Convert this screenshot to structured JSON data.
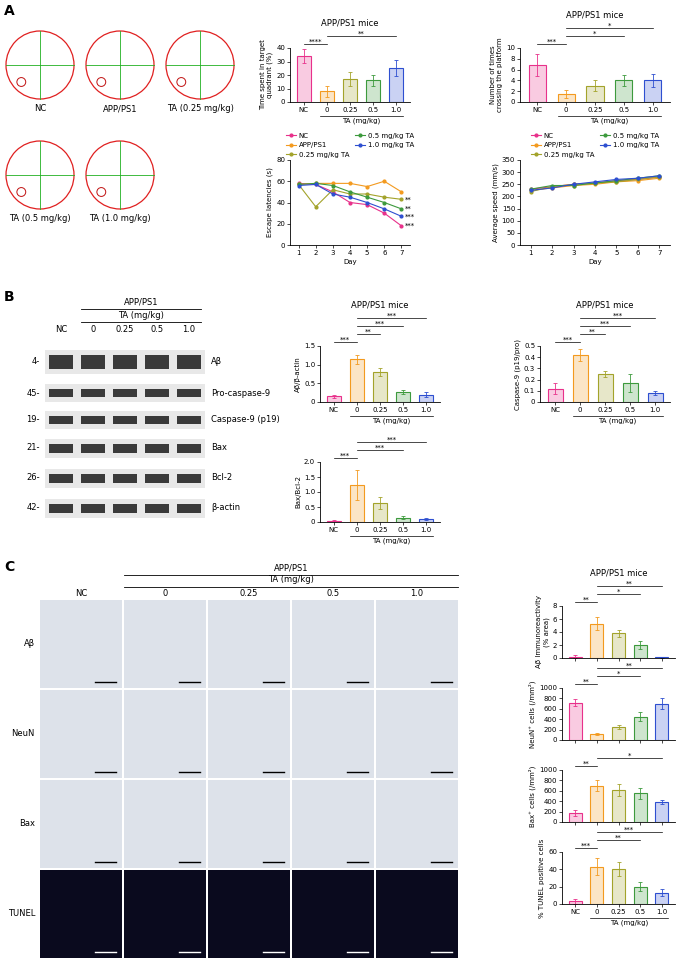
{
  "panel_labels": [
    "A",
    "B",
    "C"
  ],
  "trajectories": {
    "labels": [
      "NC",
      "APP/PS1",
      "TA (0.25 mg/kg)",
      "TA (0.5 mg/kg)",
      "TA (1.0 mg/kg)"
    ]
  },
  "western_blot": {
    "group": "APP/PS1",
    "treatment": "TA (mg/kg)",
    "lanes": [
      "NC",
      "0",
      "0.25",
      "0.5",
      "1.0"
    ],
    "bands": [
      {
        "label": "Aβ",
        "mw": "4-"
      },
      {
        "label": "Pro-caspase-9",
        "mw": "45-"
      },
      {
        "label": "Caspase-9 (p19)",
        "mw": "19-"
      },
      {
        "label": "Bax",
        "mw": "21-"
      },
      {
        "label": "Bcl-2",
        "mw": "26-"
      },
      {
        "label": "β-actin",
        "mw": "42-"
      }
    ]
  },
  "histology": {
    "group": "APP/PS1",
    "treatment": "TA (mg/kg)",
    "columns": [
      "NC",
      "0",
      "0.25",
      "0.5",
      "1.0"
    ],
    "rows": [
      "Aβ",
      "NeuN",
      "Bax",
      "TUNEL"
    ]
  },
  "chart_data": [
    {
      "type": "bar",
      "title": "APP/PS1 mice",
      "ylabel": "Time spent in target\nquadrant (%)",
      "xlabel": "TA (mg/kg)",
      "categories": [
        "NC",
        "0",
        "0.25",
        "0.5",
        "1.0"
      ],
      "values": [
        34,
        8,
        17,
        16,
        25
      ],
      "errors": [
        5,
        4,
        5,
        4,
        6
      ],
      "colors": [
        "#e8318b",
        "#f39a1f",
        "#a3a32b",
        "#3d9a3d",
        "#2e4fd0"
      ],
      "ylim": [
        0,
        40
      ],
      "yticks": [
        0,
        10,
        20,
        30,
        40
      ],
      "significance": [
        {
          "pair": [
            0,
            1
          ],
          "label": "****"
        },
        {
          "pair": [
            1,
            4
          ],
          "label": "**"
        }
      ]
    },
    {
      "type": "bar",
      "title": "APP/PS1 mice",
      "ylabel": "Number of times\ncrossing the platform",
      "xlabel": "TA (mg/kg)",
      "categories": [
        "NC",
        "0",
        "0.25",
        "0.5",
        "1.0"
      ],
      "values": [
        6.8,
        1.5,
        3,
        4,
        4
      ],
      "errors": [
        2,
        0.7,
        1,
        1,
        1.2
      ],
      "colors": [
        "#e8318b",
        "#f39a1f",
        "#a3a32b",
        "#3d9a3d",
        "#2e4fd0"
      ],
      "ylim": [
        0,
        10
      ],
      "yticks": [
        0,
        2,
        4,
        6,
        8,
        10
      ],
      "significance": [
        {
          "pair": [
            0,
            1
          ],
          "label": "***"
        },
        {
          "pair": [
            1,
            3
          ],
          "label": "*"
        },
        {
          "pair": [
            1,
            4
          ],
          "label": "*"
        }
      ]
    },
    {
      "type": "line",
      "ylabel": "Escape latencies (s)",
      "xlabel": "Day",
      "marker": "o",
      "legend": "upper center",
      "x": [
        1,
        2,
        3,
        4,
        5,
        6,
        7
      ],
      "xlim": [
        0.5,
        7.5
      ],
      "xticks": [
        1,
        2,
        3,
        4,
        5,
        6,
        7
      ],
      "ylim": [
        0,
        80
      ],
      "yticks": [
        0,
        20,
        40,
        60,
        80
      ],
      "series": [
        {
          "name": "NC",
          "color": "#e8318b",
          "values": [
            58,
            57,
            50,
            40,
            38,
            30,
            18
          ],
          "end_label": "***"
        },
        {
          "name": "APP/PS1",
          "color": "#f39a1f",
          "values": [
            57,
            58,
            58,
            58,
            55,
            60,
            50
          ]
        },
        {
          "name": "0.25 mg/kg TA",
          "color": "#a3a32b",
          "values": [
            57,
            36,
            52,
            48,
            48,
            45,
            43
          ],
          "end_label": "**"
        },
        {
          "name": "0.5 mg/kg TA",
          "color": "#3d9a3d",
          "values": [
            57,
            58,
            56,
            50,
            45,
            40,
            34
          ],
          "end_label": "**"
        },
        {
          "name": "1.0 mg/kg TA",
          "color": "#2e4fd0",
          "values": [
            56,
            57,
            48,
            45,
            40,
            34,
            27
          ],
          "end_label": "***"
        }
      ]
    },
    {
      "type": "line",
      "ylabel": "Average speed (mm/s)",
      "xlabel": "Day",
      "marker": "o",
      "legend": "upper center",
      "x": [
        1,
        2,
        3,
        4,
        5,
        6,
        7
      ],
      "xlim": [
        0.5,
        7.5
      ],
      "xticks": [
        1,
        2,
        3,
        4,
        5,
        6,
        7
      ],
      "ylim": [
        0,
        350
      ],
      "yticks": [
        0,
        50,
        100,
        150,
        200,
        250,
        300,
        350
      ],
      "series": [
        {
          "name": "NC",
          "color": "#e8318b",
          "values": [
            230,
            240,
            250,
            255,
            265,
            270,
            280
          ]
        },
        {
          "name": "APP/PS1",
          "color": "#f39a1f",
          "values": [
            225,
            235,
            245,
            250,
            260,
            265,
            275
          ]
        },
        {
          "name": "0.25 mg/kg TA",
          "color": "#a3a32b",
          "values": [
            220,
            240,
            250,
            255,
            260,
            270,
            280
          ]
        },
        {
          "name": "0.5 mg/kg TA",
          "color": "#3d9a3d",
          "values": [
            230,
            245,
            245,
            255,
            265,
            275,
            285
          ]
        },
        {
          "name": "1.0 mg/kg TA",
          "color": "#2e4fd0",
          "values": [
            225,
            235,
            250,
            260,
            270,
            275,
            285
          ]
        }
      ]
    },
    {
      "type": "bar",
      "title": "APP/PS1 mice",
      "ylabel": "Aβ/β-actin",
      "xlabel": "TA (mg/kg)",
      "categories": [
        "NC",
        "0",
        "0.25",
        "0.5",
        "1.0"
      ],
      "values": [
        0.15,
        1.15,
        0.8,
        0.27,
        0.2
      ],
      "errors": [
        0.03,
        0.12,
        0.1,
        0.05,
        0.07
      ],
      "colors": [
        "#e8318b",
        "#f39a1f",
        "#a3a32b",
        "#3d9a3d",
        "#2e4fd0"
      ],
      "ylim": [
        0,
        1.5
      ],
      "yticks": [
        0,
        0.5,
        {
          "value": 1.0,
          "label": "1.0"
        },
        1.5
      ],
      "significance": [
        {
          "pair": [
            0,
            1
          ],
          "label": "***"
        },
        {
          "pair": [
            1,
            2
          ],
          "label": "**"
        },
        {
          "pair": [
            1,
            3
          ],
          "label": "***"
        },
        {
          "pair": [
            1,
            4
          ],
          "label": "***"
        }
      ]
    },
    {
      "type": "bar",
      "title": "APP/PS1 mice",
      "ylabel": "Caspase-9 (p19/pro)",
      "xlabel": "TA (mg/kg)",
      "categories": [
        "NC",
        "0",
        "0.25",
        "0.5",
        "1.0"
      ],
      "values": [
        0.12,
        0.42,
        0.25,
        0.17,
        0.08
      ],
      "errors": [
        0.05,
        0.05,
        0.03,
        0.08,
        0.02
      ],
      "colors": [
        "#e8318b",
        "#f39a1f",
        "#a3a32b",
        "#3d9a3d",
        "#2e4fd0"
      ],
      "ylim": [
        0,
        0.5
      ],
      "yticks": [
        0,
        0.1,
        0.2,
        0.3,
        0.4,
        0.5
      ],
      "significance": [
        {
          "pair": [
            0,
            1
          ],
          "label": "***"
        },
        {
          "pair": [
            1,
            2
          ],
          "label": "**"
        },
        {
          "pair": [
            1,
            3
          ],
          "label": "***"
        },
        {
          "pair": [
            1,
            4
          ],
          "label": "***"
        }
      ]
    },
    {
      "type": "bar",
      "ylabel": "Bax/Bcl-2",
      "xlabel": "TA (mg/kg)",
      "categories": [
        "NC",
        "0",
        "0.25",
        "0.5",
        "1.0"
      ],
      "values": [
        0.05,
        1.25,
        0.65,
        0.15,
        0.1
      ],
      "errors": [
        0.02,
        0.5,
        0.2,
        0.05,
        0.03
      ],
      "colors": [
        "#e8318b",
        "#f39a1f",
        "#a3a32b",
        "#3d9a3d",
        "#2e4fd0"
      ],
      "ylim": [
        0,
        2.0
      ],
      "yticks": [
        0,
        0.5,
        {
          "value": 1.0,
          "label": "1.0"
        },
        1.5,
        {
          "value": 2.0,
          "label": "2.0"
        }
      ],
      "significance": [
        {
          "pair": [
            0,
            1
          ],
          "label": "***"
        },
        {
          "pair": [
            1,
            3
          ],
          "label": "***"
        },
        {
          "pair": [
            1,
            4
          ],
          "label": "***"
        }
      ]
    },
    {
      "type": "bar",
      "title": "APP/PS1 mice",
      "ylabel": "Aβ Immunoreactivity\n(% area)",
      "tick_labels": "y",
      "categories": [
        "NC",
        "0",
        "0.25",
        "0.5",
        "1.0"
      ],
      "values": [
        0.2,
        5.3,
        3.8,
        2.0,
        0.1
      ],
      "errors": [
        0.2,
        1,
        0.5,
        0.6,
        0.1
      ],
      "colors": [
        "#e8318b",
        "#f39a1f",
        "#a3a32b",
        "#3d9a3d",
        "#2e4fd0"
      ],
      "ylim": [
        0,
        8
      ],
      "yticks": [
        0,
        2,
        4,
        6,
        8
      ],
      "significance": [
        {
          "pair": [
            0,
            1
          ],
          "label": "**"
        },
        {
          "pair": [
            1,
            3
          ],
          "label": "*"
        },
        {
          "pair": [
            1,
            4
          ],
          "label": "**"
        }
      ]
    },
    {
      "type": "bar",
      "ylabel": "NeuN⁺ cells (/mm²)",
      "tick_labels": "y",
      "categories": [
        "NC",
        "0",
        "0.25",
        "0.5",
        "1.0"
      ],
      "values": [
        720,
        120,
        250,
        450,
        700
      ],
      "errors": [
        60,
        15,
        40,
        90,
        100
      ],
      "colors": [
        "#e8318b",
        "#f39a1f",
        "#a3a32b",
        "#3d9a3d",
        "#2e4fd0"
      ],
      "ylim": [
        0,
        1000
      ],
      "yticks": [
        0,
        200,
        400,
        600,
        800,
        1000
      ],
      "significance": [
        {
          "pair": [
            0,
            1
          ],
          "label": "**"
        },
        {
          "pair": [
            1,
            3
          ],
          "label": "*"
        },
        {
          "pair": [
            1,
            4
          ],
          "label": "**"
        }
      ]
    },
    {
      "type": "bar",
      "ylabel": "Bax⁺ cells (/mm²)",
      "tick_labels": "y",
      "categories": [
        "NC",
        "0",
        "0.25",
        "0.5",
        "1.0"
      ],
      "values": [
        180,
        700,
        620,
        550,
        390
      ],
      "errors": [
        60,
        100,
        120,
        100,
        40
      ],
      "colors": [
        "#e8318b",
        "#f39a1f",
        "#a3a32b",
        "#3d9a3d",
        "#2e4fd0"
      ],
      "ylim": [
        0,
        1000
      ],
      "yticks": [
        0,
        200,
        400,
        600,
        800,
        1000
      ],
      "significance": [
        {
          "pair": [
            0,
            1
          ],
          "label": "**"
        },
        {
          "pair": [
            1,
            4
          ],
          "label": "*"
        }
      ]
    },
    {
      "type": "bar",
      "ylabel": "% TUNEL positive cells",
      "xlabel": "TA (mg/kg)",
      "categories": [
        "NC",
        "0",
        "0.25",
        "0.5",
        "1.0"
      ],
      "values": [
        3,
        43,
        40,
        20,
        13
      ],
      "errors": [
        3,
        10,
        8,
        5,
        4
      ],
      "colors": [
        "#e8318b",
        "#f39a1f",
        "#a3a32b",
        "#3d9a3d",
        "#2e4fd0"
      ],
      "ylim": [
        0,
        60
      ],
      "yticks": [
        0,
        20,
        40,
        60
      ],
      "significance": [
        {
          "pair": [
            0,
            1
          ],
          "label": "***"
        },
        {
          "pair": [
            1,
            3
          ],
          "label": "**"
        },
        {
          "pair": [
            1,
            4
          ],
          "label": "***"
        }
      ]
    }
  ]
}
